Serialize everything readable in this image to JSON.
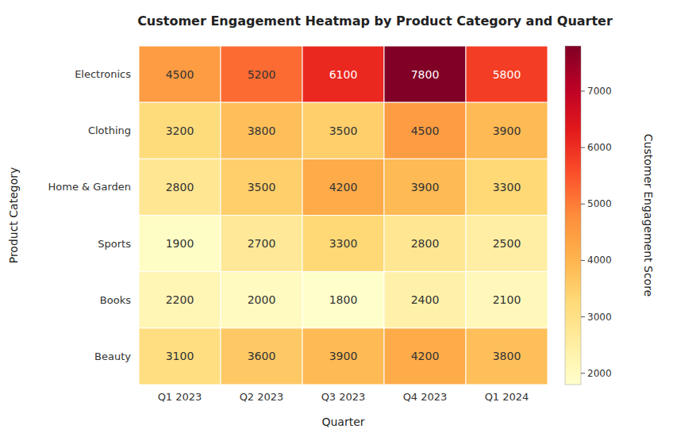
{
  "chart_data": {
    "type": "heatmap",
    "title": "Customer Engagement Heatmap by Product Category and Quarter",
    "x_label": "Quarter",
    "y_label": "Product Category",
    "x_categories": [
      "Q1 2023",
      "Q2 2023",
      "Q3 2023",
      "Q4 2023",
      "Q1 2024"
    ],
    "y_categories": [
      "Electronics",
      "Clothing",
      "Home & Garden",
      "Sports",
      "Books",
      "Beauty"
    ],
    "values": [
      [
        4500,
        5200,
        6100,
        7800,
        5800
      ],
      [
        3200,
        3800,
        3500,
        4500,
        3900
      ],
      [
        2800,
        3500,
        4200,
        3900,
        3300
      ],
      [
        1900,
        2700,
        3300,
        2800,
        2500
      ],
      [
        2200,
        2000,
        1800,
        2400,
        2100
      ],
      [
        3100,
        3600,
        3900,
        4200,
        3800
      ]
    ],
    "data_labels": true,
    "colorbar_label": "Customer Engagement Score",
    "colorbar_range": [
      1800,
      7800
    ],
    "colorbar_ticks": [
      2000,
      3000,
      4000,
      5000,
      6000,
      7000
    ]
  }
}
